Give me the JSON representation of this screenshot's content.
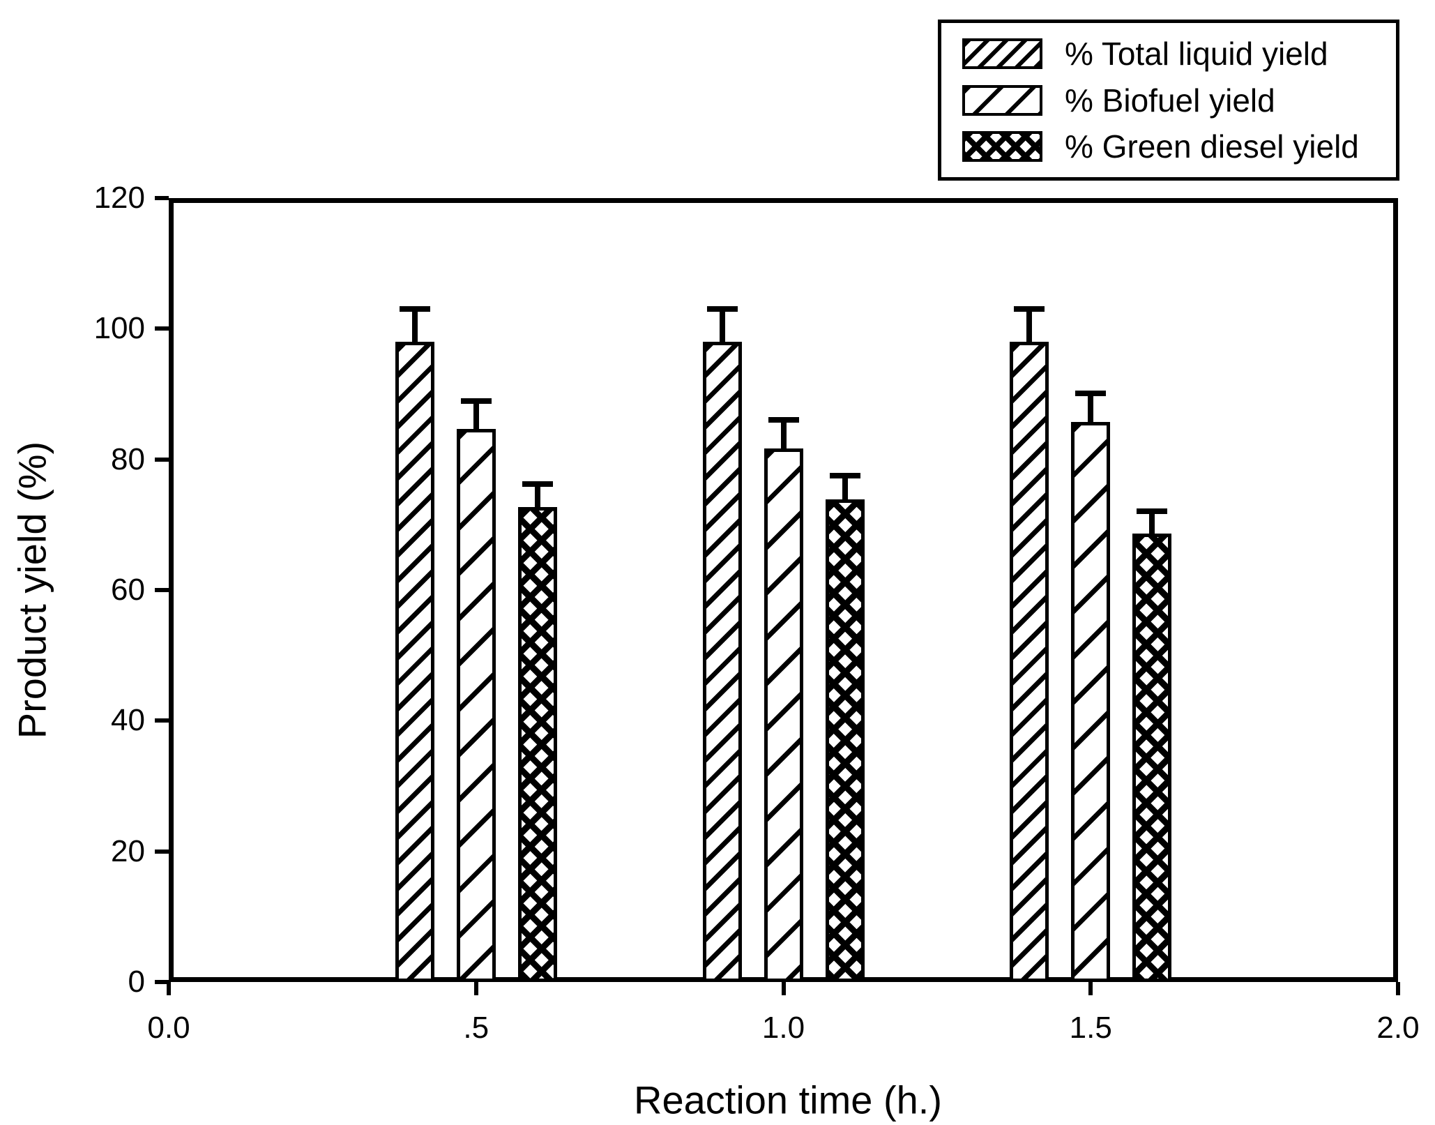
{
  "page": {
    "background": "#ffffff",
    "ink_color": "#000000"
  },
  "chart_data": {
    "type": "bar",
    "title": "",
    "xlabel": "Reaction time (h.)",
    "ylabel": "Product yield (%)",
    "xlim": [
      0.0,
      2.0
    ],
    "ylim": [
      0,
      120
    ],
    "grid": false,
    "legend_position": "top-right",
    "categories": [
      0.5,
      1.0,
      1.5
    ],
    "xtick_labels": [
      "0.0",
      ".5",
      "1.0",
      "1.5",
      "2.0"
    ],
    "xtick_values": [
      0.0,
      0.5,
      1.0,
      1.5,
      2.0
    ],
    "ytick_labels": [
      "0",
      "20",
      "40",
      "60",
      "80",
      "100",
      "120"
    ],
    "ytick_values": [
      0,
      20,
      40,
      60,
      80,
      100,
      120
    ],
    "error_bars": "plus-direction-with-caps",
    "series": [
      {
        "name": "% Total liquid yield",
        "slug": "total-liquid-yield",
        "hatch": "dense-diagonal",
        "values": [
          98,
          98,
          98
        ],
        "errors": [
          5,
          5,
          5
        ]
      },
      {
        "name": "% Biofuel yield",
        "slug": "biofuel-yield",
        "hatch": "sparse-diagonal",
        "values": [
          84.7,
          81.7,
          85.7
        ],
        "errors": [
          4.2,
          4.3,
          4.4
        ]
      },
      {
        "name": "% Green diesel yield",
        "slug": "green-diesel-yield",
        "hatch": "crosshatch",
        "values": [
          72.7,
          73.9,
          68.6
        ],
        "errors": [
          3.5,
          3.6,
          3.5
        ]
      }
    ]
  }
}
